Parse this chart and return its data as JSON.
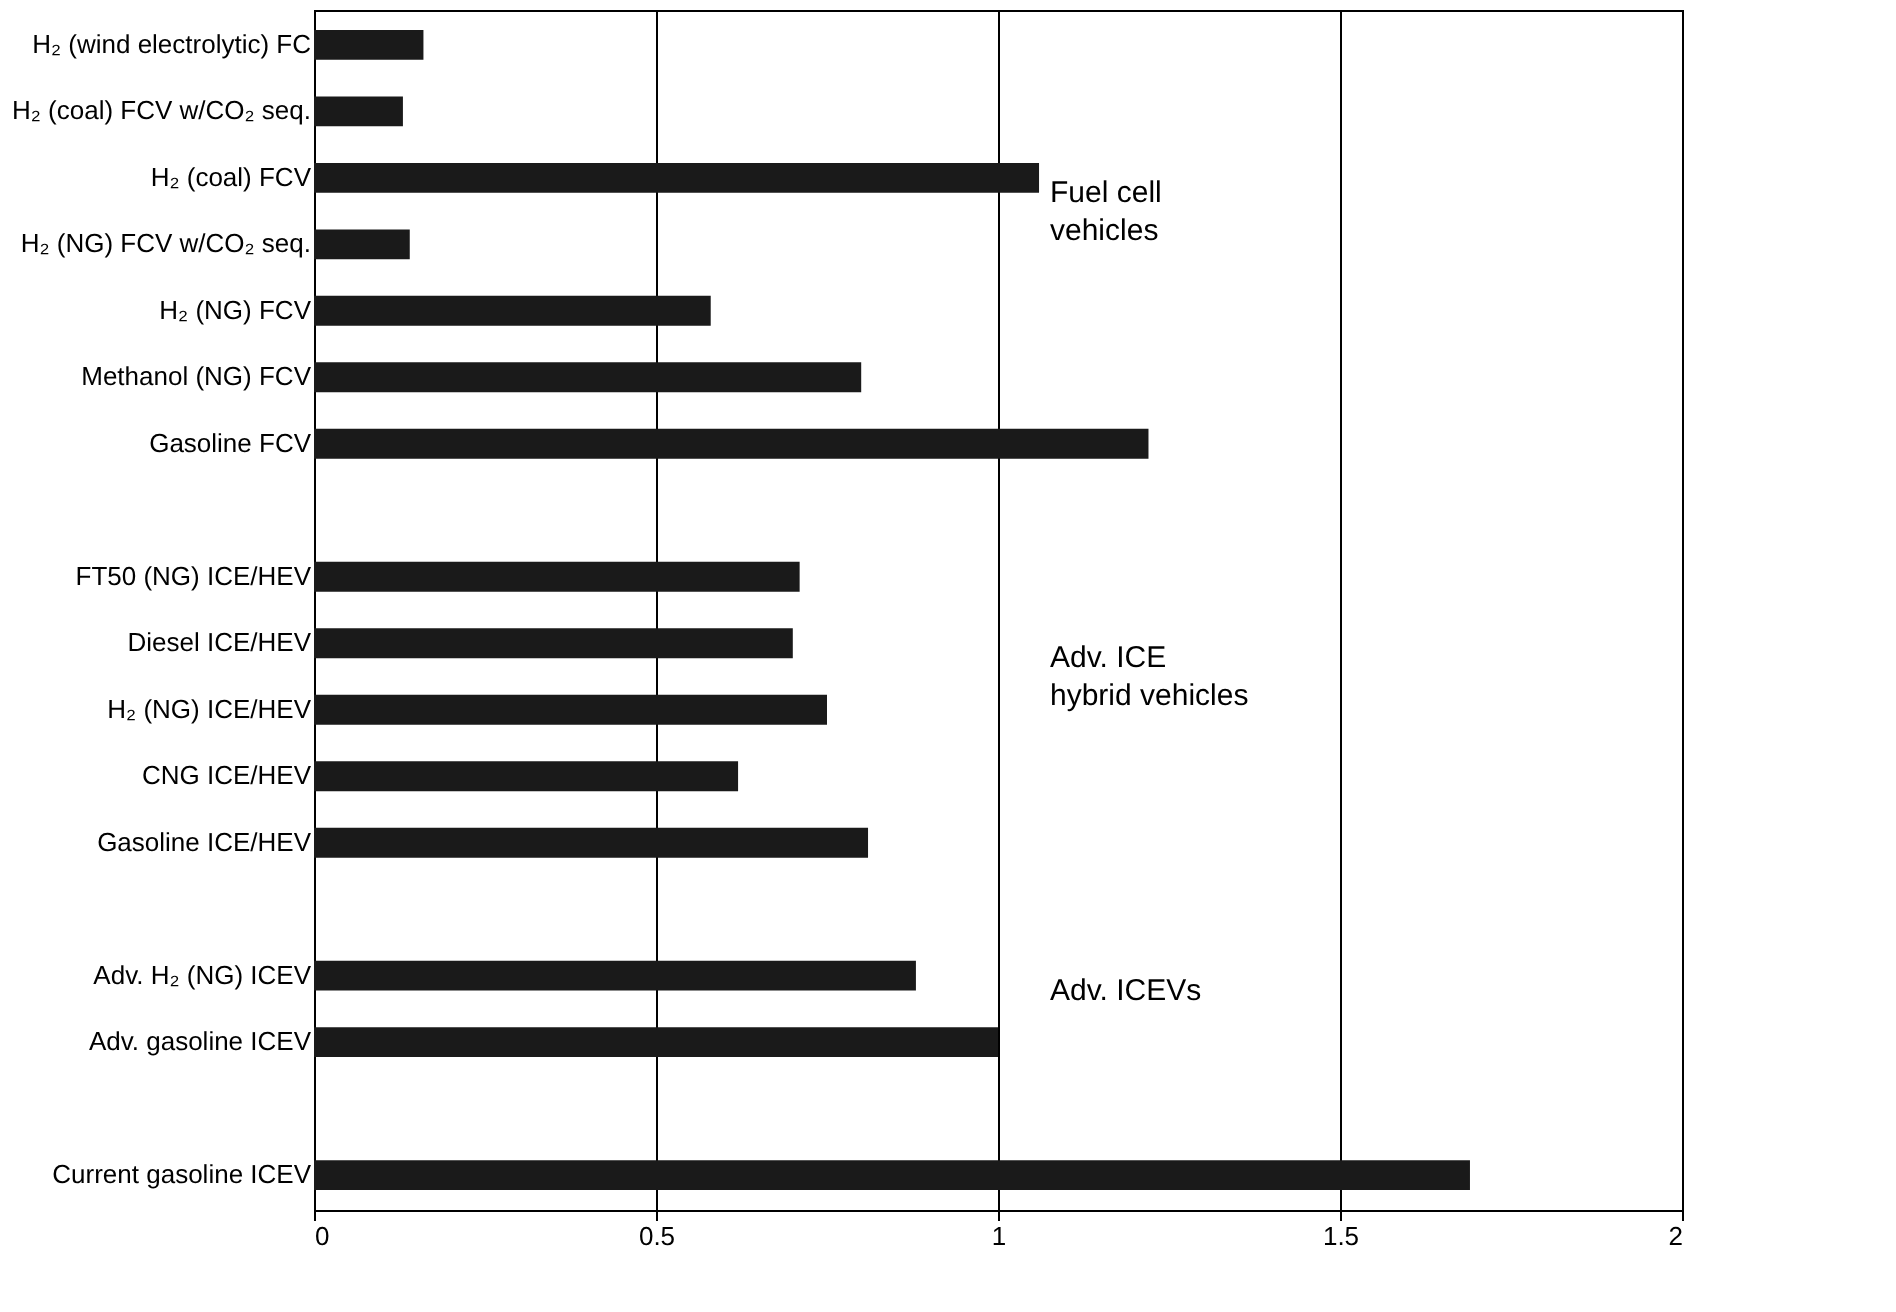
{
  "chart_data": {
    "type": "bar",
    "orientation": "horizontal",
    "categories": [
      "H₂ (wind electrolytic) FC",
      "H₂ (coal) FCV w/CO₂ seq.",
      "H₂ (coal) FCV",
      "H₂ (NG) FCV w/CO₂ seq.",
      "H₂ (NG) FCV",
      "Methanol (NG) FCV",
      "Gasoline FCV",
      null,
      "FT50 (NG) ICE/HEV",
      "Diesel ICE/HEV",
      "H₂ (NG) ICE/HEV",
      "CNG ICE/HEV",
      "Gasoline ICE/HEV",
      null,
      "Adv. H₂ (NG) ICEV",
      "Adv. gasoline ICEV",
      null,
      "Current gasoline ICEV"
    ],
    "values": [
      0.16,
      0.13,
      1.06,
      0.14,
      0.58,
      0.8,
      1.22,
      null,
      0.71,
      0.7,
      0.75,
      0.62,
      0.81,
      null,
      0.88,
      1.0,
      null,
      1.69
    ],
    "color": "#1a1a1a",
    "xlim": [
      0,
      2
    ],
    "xticks": [
      0,
      0.5,
      1,
      1.5,
      2
    ],
    "grid": "x",
    "annotations": [
      "Fuel cell\nvehicles",
      "Adv. ICE\nhybrid vehicles",
      "Adv. ICEVs"
    ]
  }
}
